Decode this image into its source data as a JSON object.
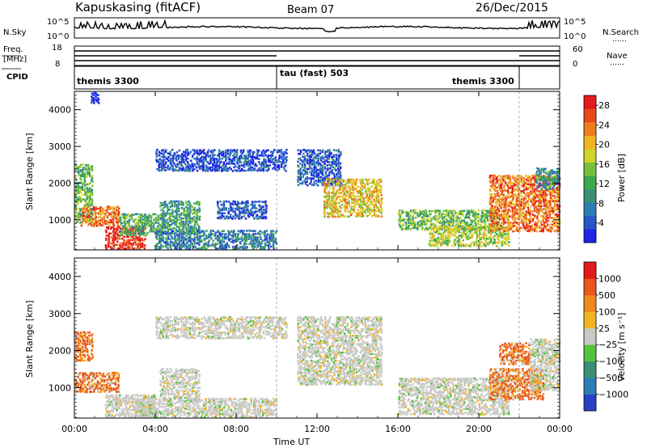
{
  "header": {
    "station": "Kapuskasing (fitACF)",
    "beam": "Beam 07",
    "date": "26/Dec/2015"
  },
  "noise_panel": {
    "left_label": "N.Sky",
    "right_label": "N.Search",
    "right_marker": "……",
    "left_ticks": [
      "10^5",
      "10^0"
    ],
    "right_ticks": [
      "10^5",
      "10^0"
    ]
  },
  "freq_panel": {
    "left_label_1": "Freq.",
    "left_label_2": "[MHz]",
    "left_label_3": "CPID",
    "right_label": "Nave",
    "right_marker": "……",
    "left_ticks": [
      "18",
      "8"
    ],
    "right_ticks": [
      "60",
      "0"
    ]
  },
  "cpid_panel": {
    "segments": [
      {
        "label": "themis 3300",
        "start": "00:00",
        "end": "10:00"
      },
      {
        "label": "tau (fast) 503",
        "start": "10:00",
        "end": "22:00"
      },
      {
        "label": "themis 3300",
        "start": "22:00",
        "end": "24:00"
      }
    ]
  },
  "chart_data": [
    {
      "type": "heatmap",
      "title": "",
      "xlabel": "",
      "ylabel": "Slant Range [km]",
      "x_ticks": [
        "00:00",
        "04:00",
        "08:00",
        "12:00",
        "16:00",
        "20:00",
        "00:00"
      ],
      "y_ticks": [
        "1000",
        "2000",
        "3000",
        "4000"
      ],
      "xlim_hours": [
        0,
        24
      ],
      "ylim_km": [
        180,
        4500
      ],
      "colorbar": {
        "label": "Power [dB]",
        "ticks": [
          "4",
          "8",
          "12",
          "16",
          "20",
          "24",
          "28"
        ],
        "range": [
          0,
          30
        ],
        "colors": [
          "#1f24e6",
          "#2a55c8",
          "#2f7db5",
          "#3c8f76",
          "#3aa94d",
          "#77c13a",
          "#cfd52b",
          "#f0b423",
          "#f07d1f",
          "#e84a1c",
          "#e31b1b"
        ]
      },
      "regions": [
        {
          "t0": 0.0,
          "t1": 0.9,
          "r0": 900,
          "r1": 2500,
          "level": 0.45
        },
        {
          "t0": 0.3,
          "t1": 2.2,
          "r0": 800,
          "r1": 1350,
          "level": 0.8
        },
        {
          "t0": 1.5,
          "t1": 3.5,
          "r0": 180,
          "r1": 800,
          "level": 0.95
        },
        {
          "t0": 2.2,
          "t1": 4.5,
          "r0": 550,
          "r1": 1150,
          "level": 0.4
        },
        {
          "t0": 4.2,
          "t1": 6.2,
          "r0": 600,
          "r1": 1500,
          "level": 0.35
        },
        {
          "t0": 4.0,
          "t1": 10.0,
          "r0": 180,
          "r1": 700,
          "level": 0.25
        },
        {
          "t0": 7.0,
          "t1": 9.5,
          "r0": 1000,
          "r1": 1500,
          "level": 0.15
        },
        {
          "t0": 4.0,
          "t1": 10.5,
          "r0": 2300,
          "r1": 2900,
          "level": 0.12
        },
        {
          "t0": 11.0,
          "t1": 13.2,
          "r0": 1900,
          "r1": 2900,
          "level": 0.15
        },
        {
          "t0": 12.3,
          "t1": 15.2,
          "r0": 1050,
          "r1": 2100,
          "level": 0.65
        },
        {
          "t0": 16.0,
          "t1": 21.0,
          "r0": 700,
          "r1": 1250,
          "level": 0.45
        },
        {
          "t0": 17.5,
          "t1": 21.5,
          "r0": 250,
          "r1": 800,
          "level": 0.55
        },
        {
          "t0": 20.5,
          "t1": 24.0,
          "r0": 650,
          "r1": 2200,
          "level": 0.8
        },
        {
          "t0": 22.8,
          "t1": 24.0,
          "r0": 1800,
          "r1": 2400,
          "level": 0.3
        },
        {
          "t0": 0.8,
          "t1": 1.2,
          "r0": 4150,
          "r1": 4450,
          "level": 0.05
        }
      ]
    },
    {
      "type": "heatmap",
      "title": "",
      "xlabel": "Time UT",
      "ylabel": "Slant Range [km]",
      "x_ticks": [
        "00:00",
        "04:00",
        "08:00",
        "12:00",
        "16:00",
        "20:00",
        "00:00"
      ],
      "y_ticks": [
        "1000",
        "2000",
        "3000",
        "4000"
      ],
      "xlim_hours": [
        0,
        24
      ],
      "ylim_km": [
        180,
        4500
      ],
      "colorbar": {
        "label": "Velocity [m s⁻¹]",
        "ticks": [
          "1000",
          "500",
          "100",
          "25",
          "−25",
          "−100",
          "−500",
          "−1000"
        ],
        "range": [
          -1000,
          1000
        ],
        "colors": [
          "#2741c4",
          "#2f7db5",
          "#3c8f76",
          "#56c23e",
          "#c8c8c4",
          "#f0b423",
          "#ee8a1e",
          "#e8571b",
          "#e31b1b"
        ]
      },
      "regions": [
        {
          "t0": 0.0,
          "t1": 0.9,
          "r0": 1700,
          "r1": 2500,
          "level": 0.7
        },
        {
          "t0": 0.0,
          "t1": 2.2,
          "r0": 850,
          "r1": 1400,
          "level": 0.8
        },
        {
          "t0": 1.5,
          "t1": 4.0,
          "r0": 180,
          "r1": 800,
          "level": 0.5
        },
        {
          "t0": 3.0,
          "t1": 10.0,
          "r0": 180,
          "r1": 700,
          "level": 0.5
        },
        {
          "t0": 4.2,
          "t1": 6.2,
          "r0": 600,
          "r1": 1500,
          "level": 0.5
        },
        {
          "t0": 4.0,
          "t1": 10.5,
          "r0": 2300,
          "r1": 2900,
          "level": 0.5
        },
        {
          "t0": 11.0,
          "t1": 15.2,
          "r0": 1050,
          "r1": 2900,
          "level": 0.5
        },
        {
          "t0": 16.0,
          "t1": 21.5,
          "r0": 250,
          "r1": 1250,
          "level": 0.5
        },
        {
          "t0": 20.5,
          "t1": 23.2,
          "r0": 650,
          "r1": 1500,
          "level": 0.78
        },
        {
          "t0": 21.0,
          "t1": 22.5,
          "r0": 1600,
          "r1": 2200,
          "level": 0.72
        },
        {
          "t0": 22.5,
          "t1": 24.0,
          "r0": 900,
          "r1": 2300,
          "level": 0.5
        }
      ]
    }
  ]
}
